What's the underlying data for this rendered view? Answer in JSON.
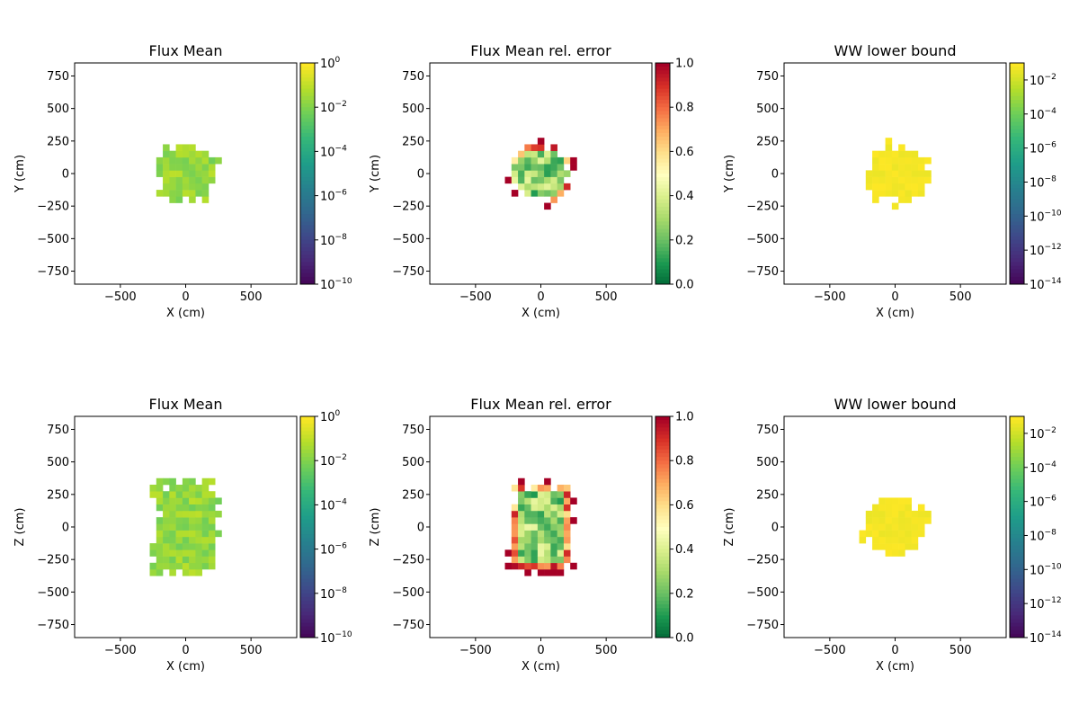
{
  "chart_data": [
    {
      "type": "heatmap",
      "title": "Flux Mean",
      "xlabel": "X (cm)",
      "ylabel": "Y (cm)",
      "xlim": [
        -850,
        850
      ],
      "ylim": [
        -850,
        850
      ],
      "xticks": [
        -500,
        0,
        500
      ],
      "yticks": [
        750,
        500,
        250,
        0,
        -250,
        -500,
        -750
      ],
      "colormap": "viridis",
      "scale": "log",
      "colorbar": {
        "min_exp": -10,
        "max_exp": 0,
        "tick_exps": [
          0,
          -2,
          -4,
          -6,
          -8,
          -10
        ]
      },
      "region": {
        "shape": "blob",
        "cx": 0,
        "cy": 0,
        "rx": 280,
        "ry": 260
      },
      "value_range": {
        "min_exp": -3.0,
        "max_exp": -1.0
      }
    },
    {
      "type": "heatmap",
      "title": "Flux Mean rel. error",
      "xlabel": "X (cm)",
      "ylabel": "Y (cm)",
      "xlim": [
        -850,
        850
      ],
      "ylim": [
        -850,
        850
      ],
      "xticks": [
        -500,
        0,
        500
      ],
      "yticks": [
        750,
        500,
        250,
        0,
        -250,
        -500,
        -750
      ],
      "colormap": "RdYlGn_r",
      "scale": "linear",
      "colorbar": {
        "min": 0.0,
        "max": 1.0,
        "ticks": [
          "1.0",
          "0.8",
          "0.6",
          "0.4",
          "0.2",
          "0.0"
        ]
      },
      "region": {
        "shape": "blob",
        "cx": 0,
        "cy": 0,
        "rx": 280,
        "ry": 260
      },
      "value_range": {
        "min": 0.1,
        "max": 1.0
      }
    },
    {
      "type": "heatmap",
      "title": "WW lower bound",
      "xlabel": "X (cm)",
      "ylabel": "Y (cm)",
      "xlim": [
        -850,
        850
      ],
      "ylim": [
        -850,
        850
      ],
      "xticks": [
        -500,
        0,
        500
      ],
      "yticks": [
        750,
        500,
        250,
        0,
        -250,
        -500,
        -750
      ],
      "colormap": "viridis",
      "scale": "log",
      "colorbar": {
        "min_exp": -14,
        "max_exp": -1,
        "tick_exps": [
          -2,
          -4,
          -6,
          -8,
          -10,
          -12,
          -14
        ]
      },
      "region": {
        "shape": "blob",
        "cx": 0,
        "cy": 0,
        "rx": 280,
        "ry": 260
      },
      "value_range": {
        "min_exp": -1.6,
        "max_exp": -1.0
      }
    },
    {
      "type": "heatmap",
      "title": "Flux Mean",
      "xlabel": "X (cm)",
      "ylabel": "Z (cm)",
      "xlim": [
        -850,
        850
      ],
      "ylim": [
        -850,
        850
      ],
      "xticks": [
        -500,
        0,
        500
      ],
      "yticks": [
        750,
        500,
        250,
        0,
        -250,
        -500,
        -750
      ],
      "colormap": "viridis",
      "scale": "log",
      "colorbar": {
        "min_exp": -10,
        "max_exp": 0,
        "tick_exps": [
          0,
          -2,
          -4,
          -6,
          -8,
          -10
        ]
      },
      "region": {
        "shape": "rect",
        "cx": 0,
        "cy": 0,
        "rx": 260,
        "ry": 390
      },
      "value_range": {
        "min_exp": -3.0,
        "max_exp": -1.0
      }
    },
    {
      "type": "heatmap",
      "title": "Flux Mean rel. error",
      "xlabel": "X (cm)",
      "ylabel": "Z (cm)",
      "xlim": [
        -850,
        850
      ],
      "ylim": [
        -850,
        850
      ],
      "xticks": [
        -500,
        0,
        500
      ],
      "yticks": [
        750,
        500,
        250,
        0,
        -250,
        -500,
        -750
      ],
      "colormap": "RdYlGn_r",
      "scale": "linear",
      "colorbar": {
        "min": 0.0,
        "max": 1.0,
        "ticks": [
          "1.0",
          "0.8",
          "0.6",
          "0.4",
          "0.2",
          "0.0"
        ]
      },
      "region": {
        "shape": "rect",
        "cx": 0,
        "cy": 0,
        "rx": 260,
        "ry": 390
      },
      "value_range": {
        "min": 0.1,
        "max": 1.0
      }
    },
    {
      "type": "heatmap",
      "title": "WW lower bound",
      "xlabel": "X (cm)",
      "ylabel": "Z (cm)",
      "xlim": [
        -850,
        850
      ],
      "ylim": [
        -850,
        850
      ],
      "xticks": [
        -500,
        0,
        500
      ],
      "yticks": [
        750,
        500,
        250,
        0,
        -250,
        -500,
        -750
      ],
      "colormap": "viridis",
      "scale": "log",
      "colorbar": {
        "min_exp": -14,
        "max_exp": -1,
        "tick_exps": [
          -2,
          -4,
          -6,
          -8,
          -10,
          -12,
          -14
        ]
      },
      "region": {
        "shape": "blob",
        "cx": 0,
        "cy": 0,
        "rx": 280,
        "ry": 260
      },
      "value_range": {
        "min_exp": -1.6,
        "max_exp": -1.0
      }
    }
  ]
}
